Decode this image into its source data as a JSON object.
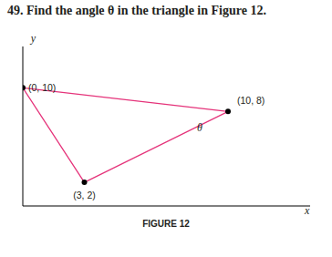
{
  "chart_data": {
    "type": "scatter",
    "title": "49. Find the angle θ in the triangle in Figure 12.",
    "caption": "FIGURE 12",
    "x_label": "x",
    "y_label": "y",
    "x": [
      0,
      10,
      3
    ],
    "values": [
      10,
      8,
      2
    ],
    "value_labels": [
      "(0, 10)",
      "(10, 8)",
      "(3, 2)"
    ],
    "annotations": [
      {
        "text": "θ",
        "x": 10,
        "y": 8
      }
    ],
    "xlim": [
      0,
      14
    ],
    "ylim": [
      0,
      13.5
    ],
    "xticks": [],
    "yticks": [],
    "tick_labels": false,
    "grid": false,
    "color": "#e5337a",
    "marker": "circle",
    "line_style": "solid"
  }
}
